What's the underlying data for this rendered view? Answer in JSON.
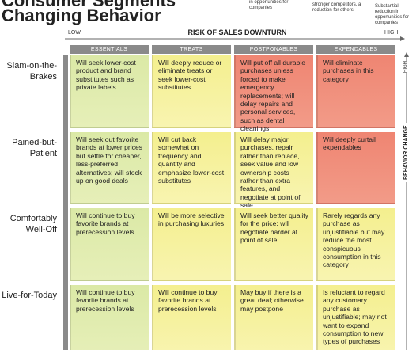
{
  "title": [
    "Consumer Segments",
    "Changing Behavior"
  ],
  "notes": [
    "in opportunities for companies",
    "stronger competitors, a reduction for others",
    "Substantial reduction in opportunities for companies"
  ],
  "x_axis": {
    "low": "LOW",
    "label": "RISK OF SALES DOWNTURN",
    "high": "HIGH"
  },
  "y_axis": {
    "label": "BEHAVIOR CHANGE",
    "high": "HIGH"
  },
  "columns": [
    "ESSENTIALS",
    "TREATS",
    "POSTPONABLES",
    "EXPENDABLES"
  ],
  "rows": [
    {
      "label": "Slam-on-the-Brakes",
      "cells": [
        "Will seek lower-cost product and brand substitutes such as private labels",
        "Will deeply reduce or eliminate treats or seek lower-cost substitutes",
        "Will put off all durable purchases unless forced to make emergency replacements; will delay repairs and personal services, such as dental cleanings",
        "Will eliminate purchases in this category"
      ]
    },
    {
      "label": "Pained-but-Patient",
      "cells": [
        "Will seek out favorite brands at lower prices but settle for cheaper, less-preferred alternatives; will stock up on good deals",
        "Will cut back somewhat on frequency and quantity and emphasize lower-cost substitutes",
        "Will delay major purchases, repair rather than replace, seek value and low ownership costs rather than extra features, and negotiate at point of sale",
        "Will deeply curtail expendables"
      ]
    },
    {
      "label": "Comfortably Well-Off",
      "cells": [
        "Will continue to buy favorite brands at prerecession levels",
        "Will be more selective in purchasing luxuries",
        "Will seek better quality for the price; will negotiate harder at point of sale",
        "Rarely regards any purchase as unjustifiable but may reduce the most conspicuous consumption in this category"
      ]
    },
    {
      "label": "Live-for-Today",
      "cells": [
        "Will continue to buy favorite brands at prerecession levels",
        "Will continue to buy favorite brands at prerecession levels",
        "May buy if there is a great deal; otherwise may postpone",
        "Is reluctant to regard any customary purchase as unjustifiable; may not want to expand consumption to new types of purchases"
      ]
    }
  ]
}
